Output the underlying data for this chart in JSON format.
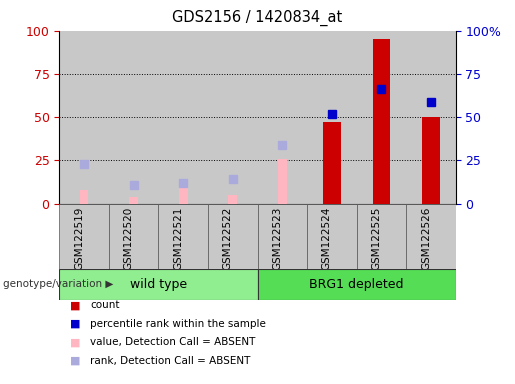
{
  "title": "GDS2156 / 1420834_at",
  "categories": [
    "GSM122519",
    "GSM122520",
    "GSM122521",
    "GSM122522",
    "GSM122523",
    "GSM122524",
    "GSM122525",
    "GSM122526"
  ],
  "groups": [
    {
      "label": "wild type",
      "span": [
        0,
        4
      ],
      "color": "#90EE90"
    },
    {
      "label": "BRG1 depleted",
      "span": [
        4,
        8
      ],
      "color": "#55DD55"
    }
  ],
  "count_values": [
    null,
    null,
    null,
    null,
    null,
    47,
    95,
    50
  ],
  "percentile_rank_values": [
    null,
    null,
    null,
    null,
    null,
    52,
    66,
    59
  ],
  "absent_value_values": [
    8,
    4,
    10,
    5,
    26,
    null,
    null,
    null
  ],
  "absent_rank_values": [
    23,
    11,
    12,
    14,
    34,
    null,
    null,
    null
  ],
  "count_color": "#CC0000",
  "percentile_color": "#0000CC",
  "absent_value_color": "#FFB6C1",
  "absent_rank_color": "#AAAADD",
  "left_yaxis_color": "#CC0000",
  "right_yaxis_color": "#0000CC",
  "ylim": [
    0,
    100
  ],
  "yticks": [
    0,
    25,
    50,
    75,
    100
  ],
  "right_ytick_labels": [
    "0",
    "25",
    "50",
    "75",
    "100%"
  ],
  "group_label": "genotype/variation",
  "legend_items": [
    {
      "color": "#CC0000",
      "label": "count"
    },
    {
      "color": "#0000CC",
      "label": "percentile rank within the sample"
    },
    {
      "color": "#FFB6C1",
      "label": "value, Detection Call = ABSENT"
    },
    {
      "color": "#AAAADD",
      "label": "rank, Detection Call = ABSENT"
    }
  ],
  "col_bg_color": "#C8C8C8",
  "plot_bg_color": "#FFFFFF",
  "grid_color": "#000000",
  "absent_bar_width": 0.18,
  "count_bar_width": 0.35
}
